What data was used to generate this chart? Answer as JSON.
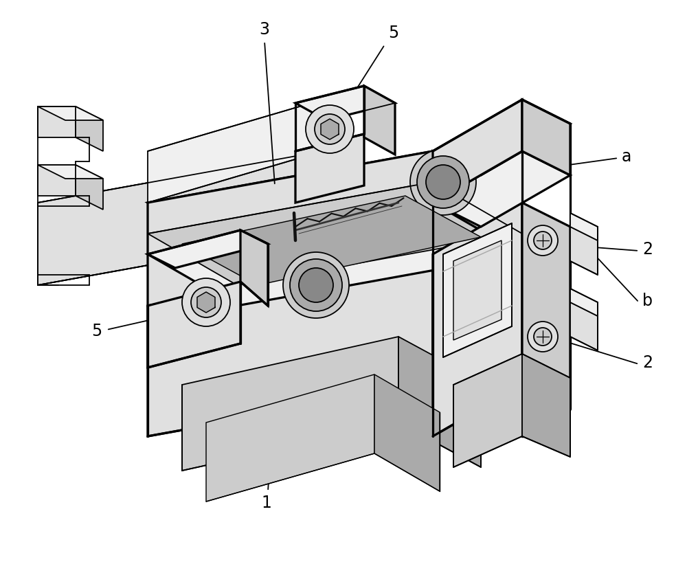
{
  "bg_color": "#ffffff",
  "lc": "#000000",
  "lw": 1.3,
  "fig_w": 10.0,
  "fig_h": 8.18,
  "dpi": 100,
  "gray_light": "#f0f0f0",
  "gray_mid": "#e0e0e0",
  "gray_dark": "#cccccc",
  "gray_darker": "#aaaaaa",
  "gray_deep": "#888888",
  "gray_hole": "#555555"
}
